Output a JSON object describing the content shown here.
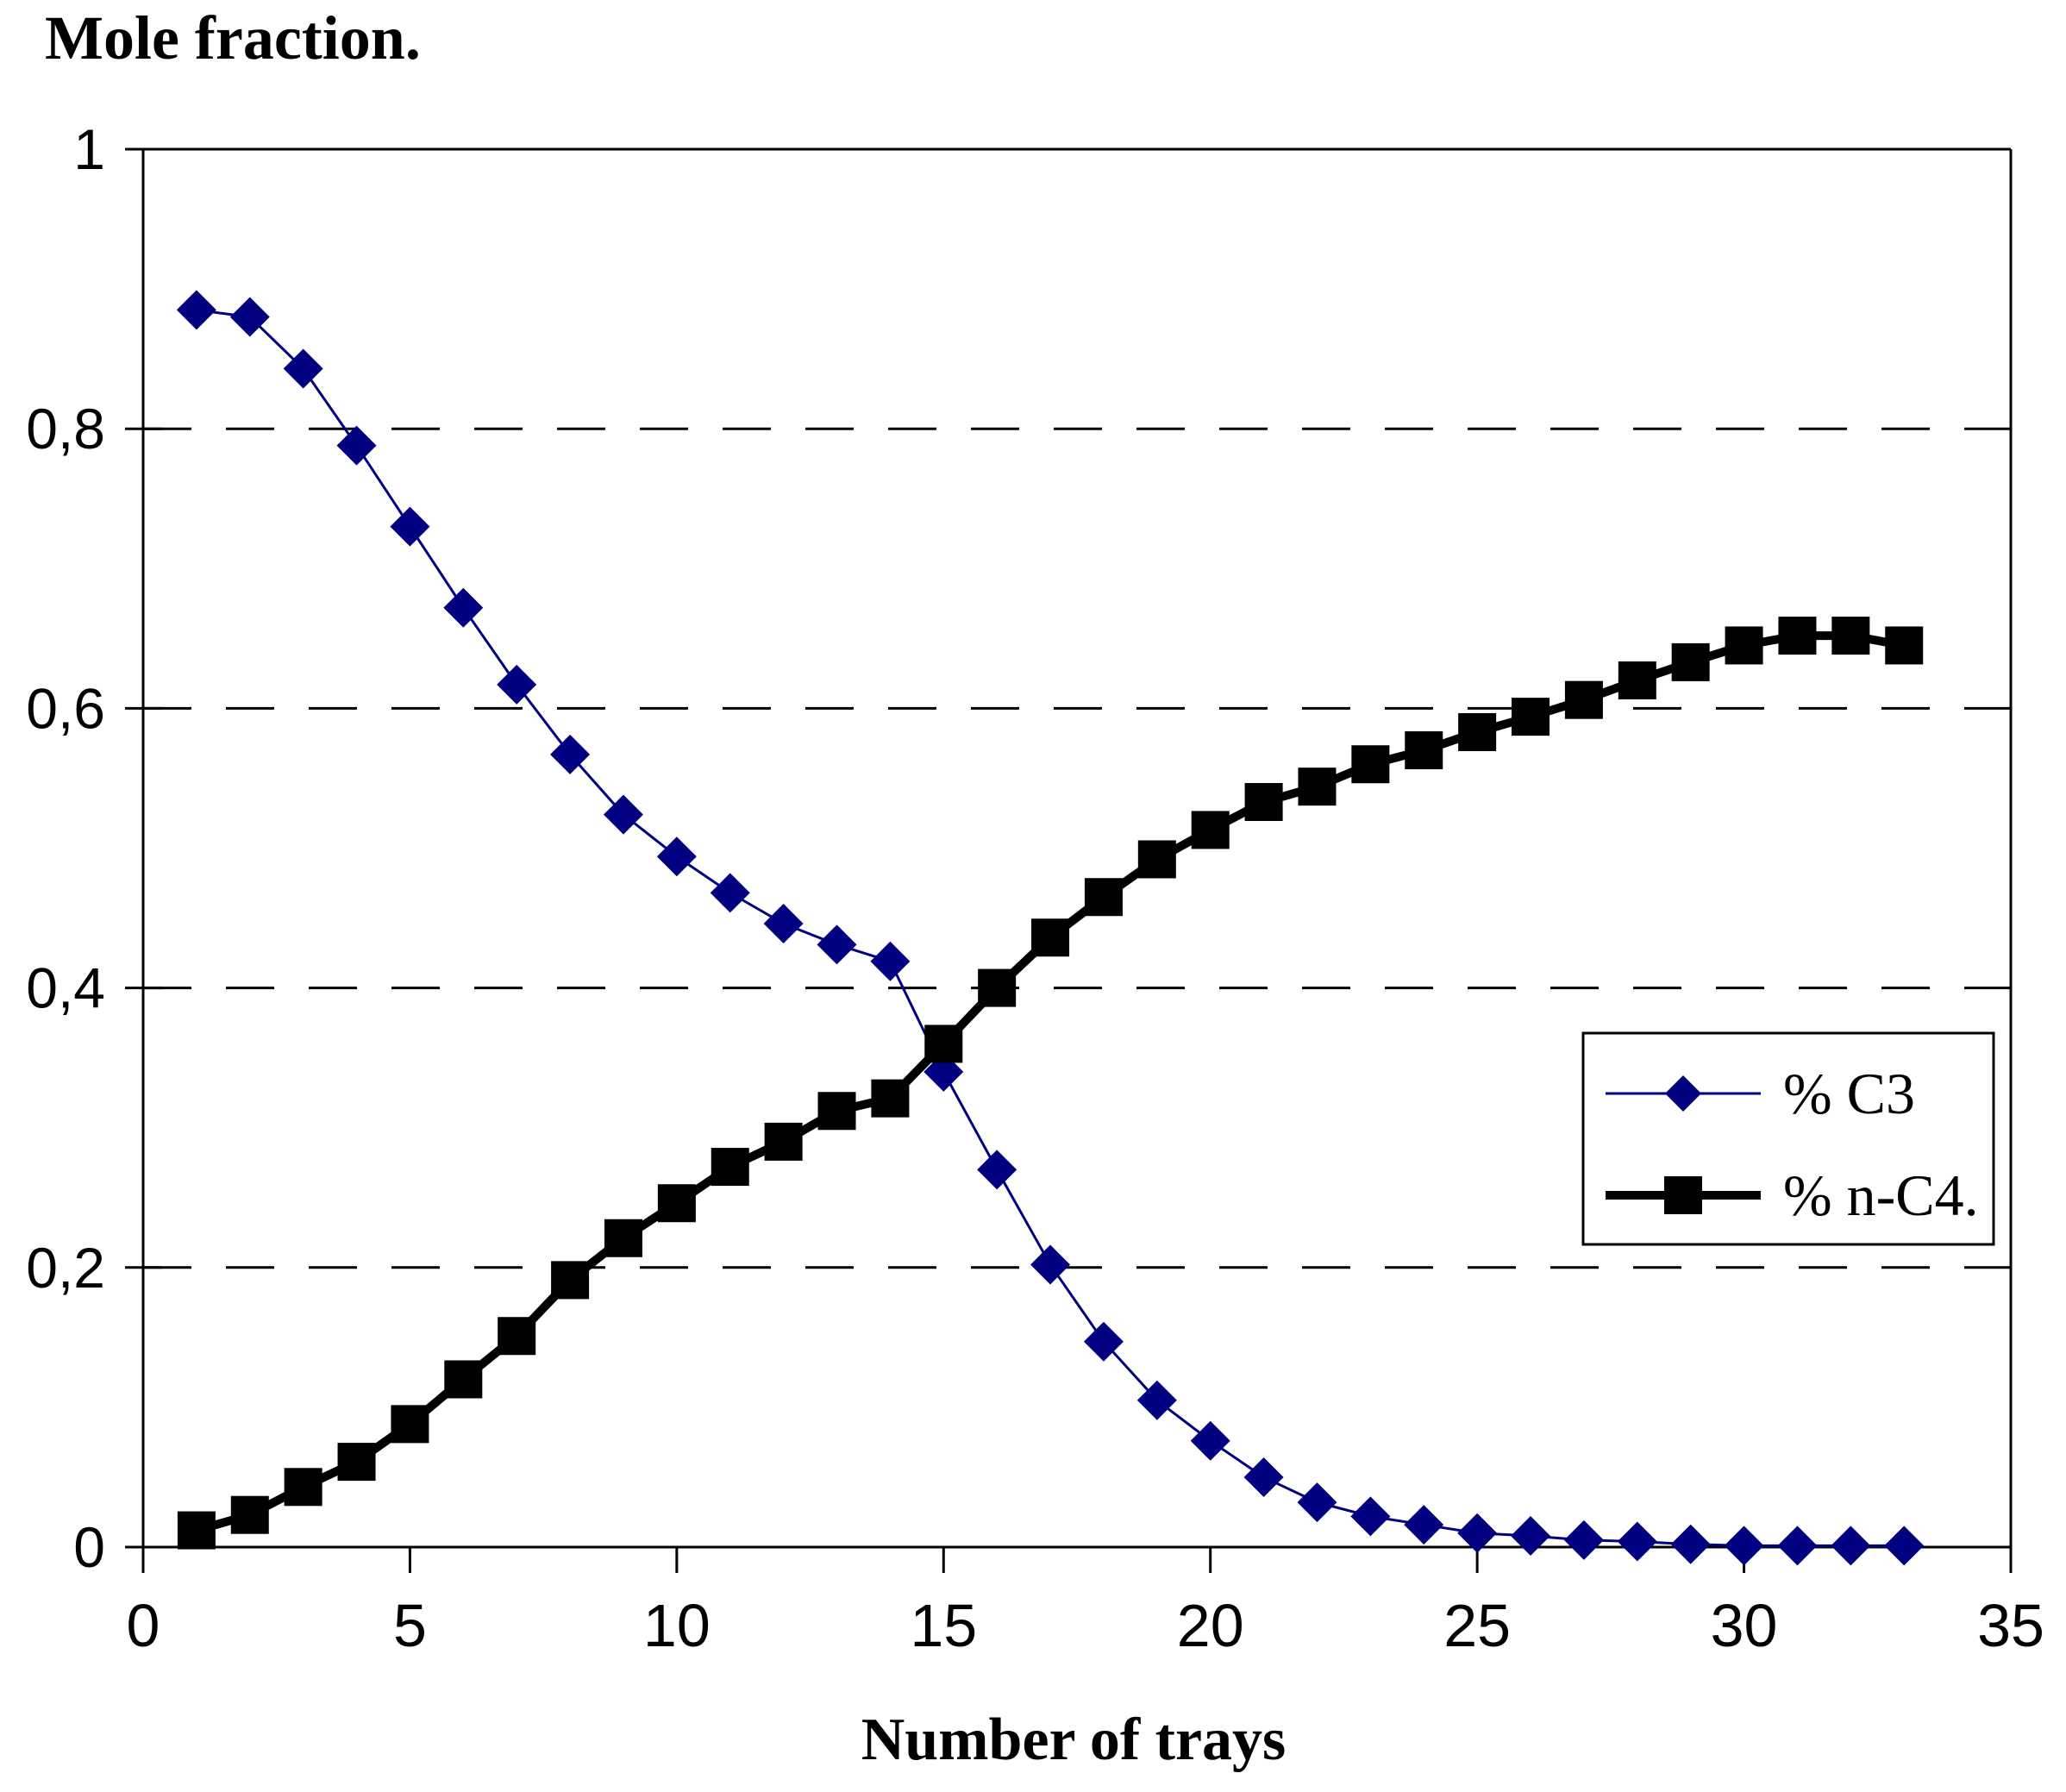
{
  "title": "Mole fraction.",
  "x_axis": {
    "title": "Number of trays",
    "tick_labels": [
      "0",
      "5",
      "10",
      "15",
      "20",
      "25",
      "30",
      "35"
    ],
    "tick_values": [
      0,
      5,
      10,
      15,
      20,
      25,
      30,
      35
    ],
    "range": [
      0,
      35
    ]
  },
  "y_axis": {
    "tick_labels": [
      "0",
      "0,2",
      "0,4",
      "0,6",
      "0,8",
      "1"
    ],
    "tick_values": [
      0,
      0.2,
      0.4,
      0.6,
      0.8,
      1
    ],
    "gridline_values": [
      0.2,
      0.4,
      0.6,
      0.8
    ],
    "range": [
      0,
      1
    ]
  },
  "legend": {
    "items": [
      {
        "label": "% C3",
        "color": "#000080",
        "marker": "diamond",
        "line_width": 3
      },
      {
        "label": "% n-C4.",
        "color": "#000000",
        "marker": "square",
        "line_width": 10
      }
    ]
  },
  "colors": {
    "c3_series": "#000080",
    "c4_series": "#000000",
    "axis": "#000000",
    "background": "#ffffff"
  },
  "chart_data": {
    "type": "line",
    "title": "Mole fraction.",
    "xlabel": "Number of trays",
    "ylabel": "Mole fraction.",
    "xlim": [
      0,
      35
    ],
    "ylim": [
      0,
      1
    ],
    "grid": "horizontal-dashed",
    "legend_position": "middle-right",
    "x": [
      1,
      2,
      3,
      4,
      5,
      6,
      7,
      8,
      9,
      10,
      11,
      12,
      13,
      14,
      15,
      16,
      17,
      18,
      19,
      20,
      21,
      22,
      23,
      24,
      25,
      26,
      27,
      28,
      29,
      30,
      31,
      32,
      33
    ],
    "series": [
      {
        "name": "% C3",
        "marker": "diamond",
        "color": "#000080",
        "values": [
          0.885,
          0.88,
          0.843,
          0.788,
          0.73,
          0.672,
          0.617,
          0.567,
          0.524,
          0.494,
          0.468,
          0.446,
          0.431,
          0.419,
          0.34,
          0.27,
          0.202,
          0.147,
          0.105,
          0.076,
          0.05,
          0.032,
          0.022,
          0.016,
          0.01,
          0.008,
          0.005,
          0.004,
          0.002,
          0.001,
          0.001,
          0.001,
          0.001
        ]
      },
      {
        "name": "% n-C4.",
        "marker": "square",
        "color": "#000000",
        "values": [
          0.012,
          0.023,
          0.043,
          0.061,
          0.088,
          0.12,
          0.151,
          0.191,
          0.221,
          0.246,
          0.272,
          0.29,
          0.312,
          0.321,
          0.36,
          0.4,
          0.436,
          0.465,
          0.492,
          0.513,
          0.533,
          0.544,
          0.56,
          0.57,
          0.583,
          0.594,
          0.606,
          0.62,
          0.633,
          0.645,
          0.652,
          0.652,
          0.645
        ]
      }
    ]
  }
}
